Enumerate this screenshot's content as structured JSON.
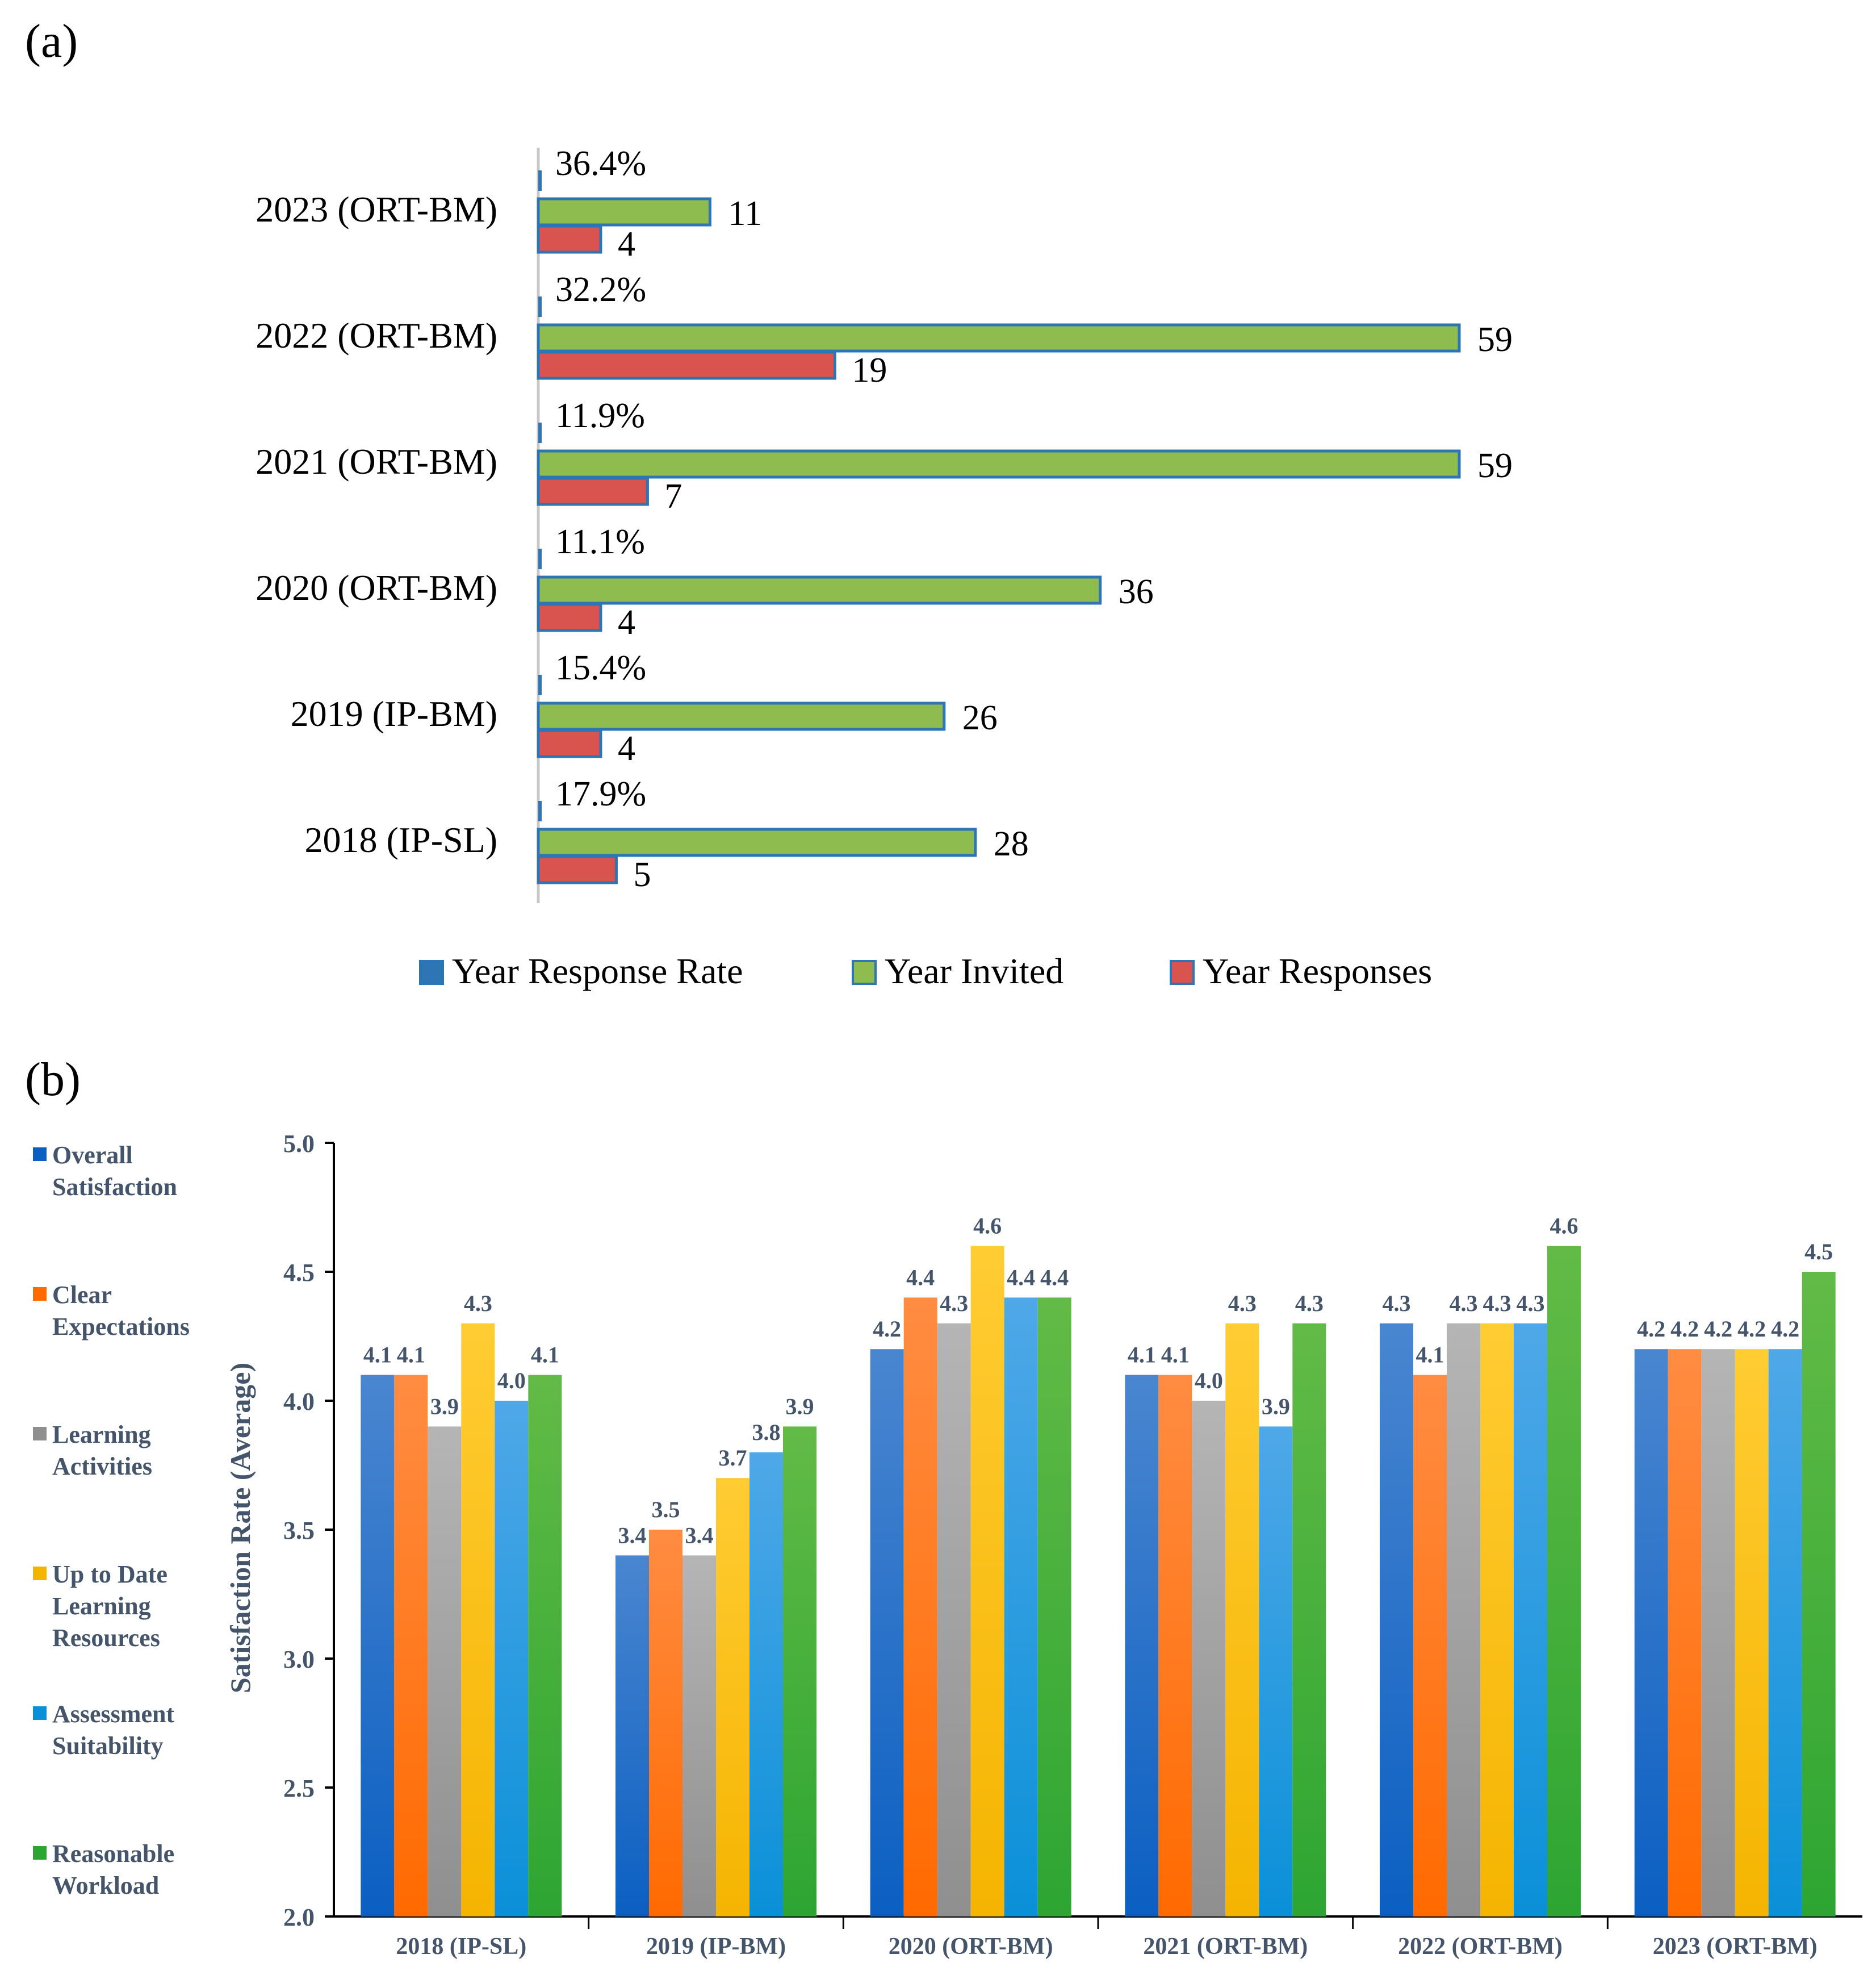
{
  "colors": {
    "invited": "#8fbc4f",
    "responses": "#d9534f",
    "rate": "#2e75b6",
    "outline": "#2e75b6",
    "axis_text_b": "#44546a"
  },
  "chart_data": [
    {
      "type": "bar",
      "orientation": "horizontal",
      "panel_label": "(a)",
      "categories": [
        "2023 (ORT-BM)",
        "2022 (ORT-BM)",
        "2021 (ORT-BM)",
        "2020 (ORT-BM)",
        "2019 (IP-BM)",
        "2018 (IP-SL)"
      ],
      "series": [
        {
          "name": "Year Response Rate",
          "values": [
            0.364,
            0.322,
            0.119,
            0.111,
            0.154,
            0.179
          ],
          "labels": [
            "36.4%",
            "32.2%",
            "11.9%",
            "11.1%",
            "15.4%",
            "17.9%"
          ]
        },
        {
          "name": "Year Invited",
          "values": [
            11,
            59,
            59,
            36,
            26,
            28
          ],
          "labels": [
            "11",
            "59",
            "59",
            "36",
            "26",
            "28"
          ]
        },
        {
          "name": "Year Responses",
          "values": [
            4,
            19,
            7,
            4,
            4,
            5
          ],
          "labels": [
            "4",
            "19",
            "7",
            "4",
            "4",
            "5"
          ]
        }
      ],
      "xlim": [
        0,
        59
      ],
      "legend_position": "bottom"
    },
    {
      "type": "bar",
      "panel_label": "(b)",
      "categories": [
        "2018 (IP-SL)",
        "2019 (IP-BM)",
        "2020 (ORT-BM)",
        "2021 (ORT-BM)",
        "2022 (ORT-BM)",
        "2023 (ORT-BM)"
      ],
      "series": [
        {
          "name": "Overall Satisfaction",
          "legend_lines": [
            "Overall",
            "Satisfaction"
          ],
          "color_top": "#4a86d0",
          "color_bottom": "#0b5fc2",
          "values": [
            4.1,
            3.4,
            4.2,
            4.1,
            4.3,
            4.2
          ],
          "labels": [
            "4.1",
            "3.4",
            "4.2",
            "4.1",
            "4.3",
            "4.2"
          ]
        },
        {
          "name": "Clear Expectations",
          "legend_lines": [
            "Clear",
            "Expectations"
          ],
          "color_top": "#ff8c42",
          "color_bottom": "#ff6a00",
          "values": [
            4.1,
            3.5,
            4.4,
            4.1,
            4.1,
            4.2
          ],
          "labels": [
            "4.1",
            "3.5",
            "4.4",
            "4.1",
            "4.1",
            "4.2"
          ]
        },
        {
          "name": "Learning Activities",
          "legend_lines": [
            "Learning",
            "Activities"
          ],
          "color_top": "#b5b5b5",
          "color_bottom": "#8f8f8f",
          "values": [
            3.9,
            3.4,
            4.3,
            4.0,
            4.3,
            4.2
          ],
          "labels": [
            "3.9",
            "3.4",
            "4.3",
            "4.0",
            "4.3",
            "4.2"
          ]
        },
        {
          "name": "Up to Date Learning Resources",
          "legend_lines": [
            "Up to Date",
            "Learning",
            "Resources"
          ],
          "color_top": "#ffcc33",
          "color_bottom": "#f5b400",
          "values": [
            4.3,
            3.7,
            4.6,
            4.3,
            4.3,
            4.2
          ],
          "labels": [
            "4.3",
            "3.7",
            "4.6",
            "4.3",
            "4.3",
            "4.2"
          ]
        },
        {
          "name": "Assessment Suitability",
          "legend_lines": [
            "Assessment",
            "Suitability"
          ],
          "color_top": "#4fa8e8",
          "color_bottom": "#0a90d8",
          "values": [
            4.0,
            3.8,
            4.4,
            3.9,
            4.3,
            4.2
          ],
          "labels": [
            "4.0",
            "3.8",
            "4.4",
            "3.9",
            "4.3",
            "4.2"
          ]
        },
        {
          "name": "Reasonable Workload",
          "legend_lines": [
            "Reasonable",
            "Workload"
          ],
          "color_top": "#62bb46",
          "color_bottom": "#2da532",
          "values": [
            4.1,
            3.9,
            4.4,
            4.3,
            4.6,
            4.5
          ],
          "labels": [
            "4.1",
            "3.9",
            "4.4",
            "4.3",
            "4.6",
            "4.5"
          ]
        }
      ],
      "ylabel": "Satisfaction Rate (Average)",
      "ylim": [
        2.0,
        5.0
      ],
      "yticks": [
        "2.0",
        "2.5",
        "3.0",
        "3.5",
        "4.0",
        "4.5",
        "5.0"
      ],
      "legend_position": "left"
    }
  ]
}
